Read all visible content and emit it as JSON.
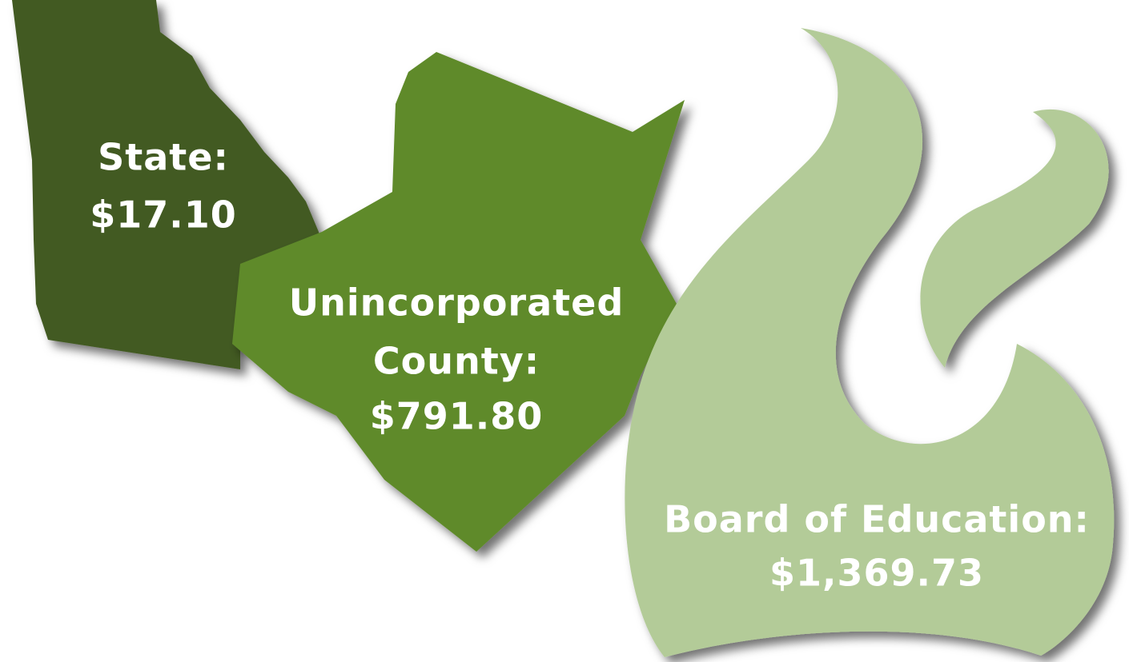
{
  "items": [
    {
      "label_lines": [
        "State:"
      ],
      "amount": "$17.10"
    },
    {
      "label_lines": [
        "Unincorporated",
        "County:"
      ],
      "amount": "$791.80"
    },
    {
      "label_lines": [
        "Board of Education:"
      ],
      "amount": "$1,369.73"
    }
  ]
}
